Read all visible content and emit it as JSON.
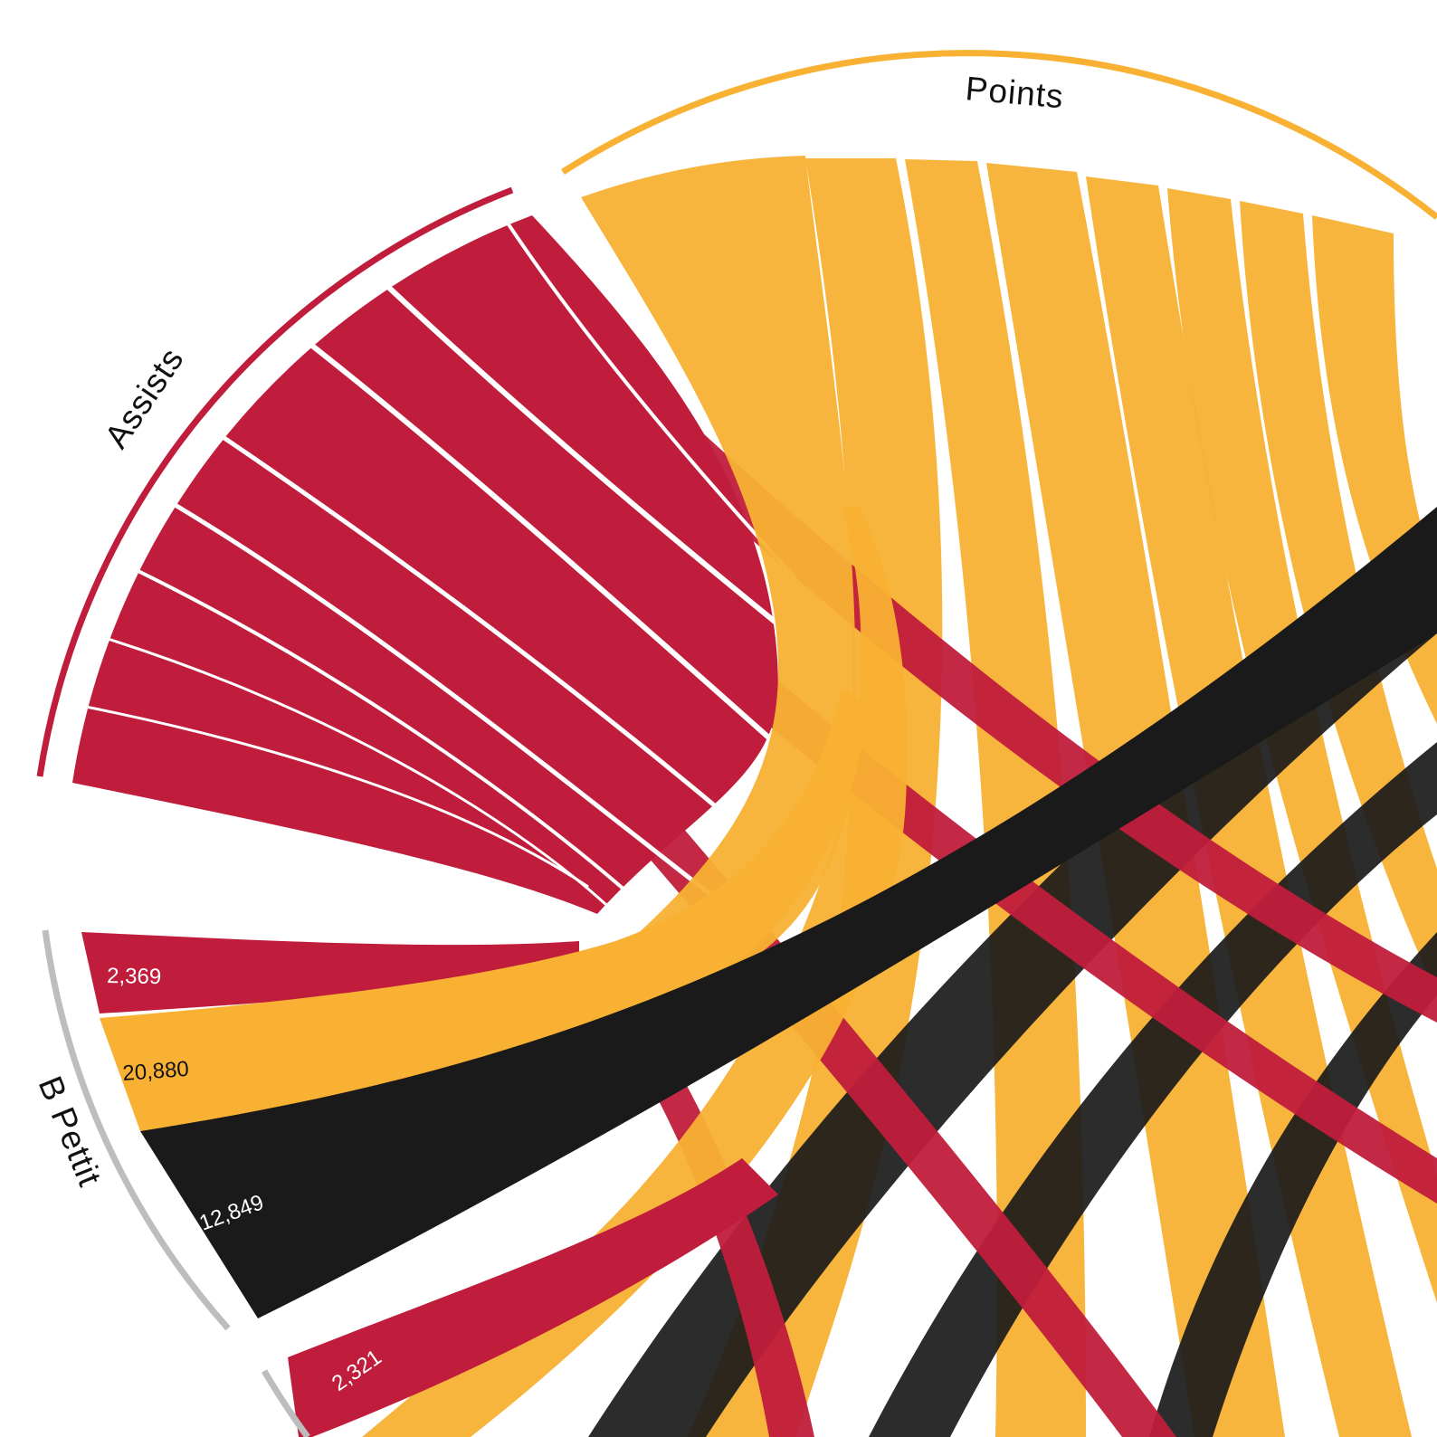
{
  "colors": {
    "assists": "#c01c3b",
    "points": "#f8b133",
    "rebounds": "#1a1a1a",
    "player_arc": "#bdbdbd",
    "background": "#ffffff"
  },
  "chart_data": {
    "type": "chord",
    "title": "",
    "groups": [
      {
        "name": "Assists",
        "kind": "stat",
        "color": "#c01c3b"
      },
      {
        "name": "Points",
        "kind": "stat",
        "color": "#f8b133"
      },
      {
        "name": "B Pettit",
        "kind": "player",
        "color": "#bdbdbd"
      }
    ],
    "flows": [
      {
        "player": "B Pettit",
        "stat": "Assists",
        "value": 2369,
        "label": "2,369",
        "color": "#c01c3b"
      },
      {
        "player": "B Pettit",
        "stat": "Points",
        "value": 20880,
        "label": "20,880",
        "color": "#f8b133"
      },
      {
        "player": "B Pettit",
        "stat": "",
        "value": 12849,
        "label": "12,849",
        "color": "#1a1a1a"
      },
      {
        "player": "",
        "stat": "Assists",
        "value": 2321,
        "label": "2,321",
        "color": "#c01c3b"
      }
    ],
    "legend": "none",
    "grid": false
  }
}
